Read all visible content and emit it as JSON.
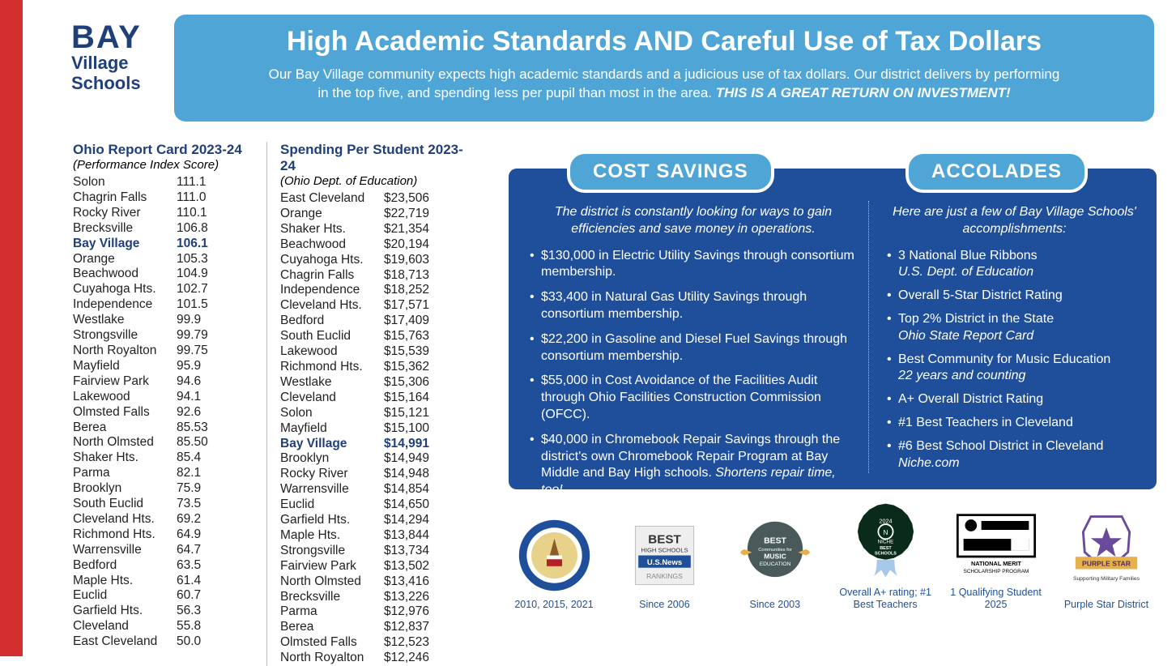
{
  "logo": {
    "line1": "BAY",
    "line2": "Village",
    "line3": "Schools"
  },
  "header": {
    "title": "High Academic Standards AND Careful Use of Tax Dollars",
    "body_a": "Our Bay Village community expects high academic standards and a judicious use of tax dollars. Our district delivers by performing",
    "body_b": "in the top five, and spending less per pupil than most in the area. ",
    "emph": "THIS IS A GREAT RETURN ON INVESTMENT!"
  },
  "report_card": {
    "title": "Ohio Report Card 2023-24",
    "subtitle": "(Performance Index Score)",
    "rows": [
      {
        "n": "Solon",
        "v": "111.1"
      },
      {
        "n": "Chagrin Falls",
        "v": "111.0"
      },
      {
        "n": "Rocky River",
        "v": "110.1"
      },
      {
        "n": "Brecksville",
        "v": "106.8"
      },
      {
        "n": "Bay Village",
        "v": "106.1",
        "hl": true
      },
      {
        "n": "Orange",
        "v": "105.3"
      },
      {
        "n": "Beachwood",
        "v": "104.9"
      },
      {
        "n": "Cuyahoga Hts.",
        "v": "102.7"
      },
      {
        "n": "Independence",
        "v": "101.5"
      },
      {
        "n": "Westlake",
        "v": "99.9"
      },
      {
        "n": "Strongsville",
        "v": "99.79"
      },
      {
        "n": "North Royalton",
        "v": "99.75"
      },
      {
        "n": "Mayfield",
        "v": "95.9"
      },
      {
        "n": "Fairview Park",
        "v": "94.6"
      },
      {
        "n": "Lakewood",
        "v": "94.1"
      },
      {
        "n": "Olmsted Falls",
        "v": "92.6"
      },
      {
        "n": "Berea",
        "v": "85.53"
      },
      {
        "n": "North Olmsted",
        "v": "85.50"
      },
      {
        "n": "Shaker Hts.",
        "v": "85.4"
      },
      {
        "n": "Parma",
        "v": "82.1"
      },
      {
        "n": "Brooklyn",
        "v": "75.9"
      },
      {
        "n": "South Euclid",
        "v": "73.5"
      },
      {
        "n": "Cleveland Hts.",
        "v": "69.2"
      },
      {
        "n": "Richmond Hts.",
        "v": "64.9"
      },
      {
        "n": "Warrensville",
        "v": "64.7"
      },
      {
        "n": "Bedford",
        "v": "63.5"
      },
      {
        "n": "Maple Hts.",
        "v": "61.4"
      },
      {
        "n": "Euclid",
        "v": "60.7"
      },
      {
        "n": "Garfield Hts.",
        "v": "56.3"
      },
      {
        "n": "Cleveland",
        "v": "55.8"
      },
      {
        "n": "East Cleveland",
        "v": "50.0"
      }
    ]
  },
  "spending": {
    "title": "Spending Per Student 2023-24",
    "subtitle": "(Ohio Dept. of Education)",
    "rows": [
      {
        "n": "East Cleveland",
        "v": "$23,506"
      },
      {
        "n": "Orange",
        "v": "$22,719"
      },
      {
        "n": "Shaker Hts.",
        "v": "$21,354"
      },
      {
        "n": "Beachwood",
        "v": "$20,194"
      },
      {
        "n": "Cuyahoga Hts.",
        "v": "$19,603"
      },
      {
        "n": "Chagrin Falls",
        "v": "$18,713"
      },
      {
        "n": "Independence",
        "v": "$18,252"
      },
      {
        "n": "Cleveland Hts.",
        "v": "$17,571"
      },
      {
        "n": "Bedford",
        "v": "$17,409"
      },
      {
        "n": "South Euclid",
        "v": "$15,763"
      },
      {
        "n": "Lakewood",
        "v": "$15,539"
      },
      {
        "n": "Richmond Hts.",
        "v": "$15,362"
      },
      {
        "n": "Westlake",
        "v": "$15,306"
      },
      {
        "n": "Cleveland",
        "v": "$15,164"
      },
      {
        "n": "Solon",
        "v": "$15,121"
      },
      {
        "n": "Mayfield",
        "v": "$15,100"
      },
      {
        "n": "Bay Village",
        "v": "$14,991",
        "hl": true
      },
      {
        "n": "Brooklyn",
        "v": "$14,949"
      },
      {
        "n": "Rocky River",
        "v": "$14,948"
      },
      {
        "n": "Warrensville",
        "v": "$14,854"
      },
      {
        "n": "Euclid",
        "v": "$14,650"
      },
      {
        "n": "Garfield Hts.",
        "v": "$14,294"
      },
      {
        "n": "Maple Hts.",
        "v": "$13,844"
      },
      {
        "n": "Strongsville",
        "v": "$13,734"
      },
      {
        "n": "Fairview Park",
        "v": "$13,502"
      },
      {
        "n": "North Olmsted",
        "v": "$13,416"
      },
      {
        "n": "Brecksville",
        "v": "$13,226"
      },
      {
        "n": "Parma",
        "v": "$12,976"
      },
      {
        "n": "Berea",
        "v": "$12,837"
      },
      {
        "n": "Olmsted Falls",
        "v": "$12,523"
      },
      {
        "n": "North Royalton",
        "v": "$12,246"
      }
    ]
  },
  "cost_savings": {
    "pill": "COST SAVINGS",
    "intro": "The district is constantly looking for ways to gain efficiencies and save money in operations.",
    "items": [
      {
        "t": "$130,000 in Electric Utility Savings through consortium membership."
      },
      {
        "t": "$33,400 in Natural Gas Utility Savings through consortium membership."
      },
      {
        "t": "$22,200 in Gasoline and Diesel Fuel Savings through consortium membership."
      },
      {
        "t": "$55,000 in Cost Avoidance of the Facilities Audit through Ohio Facilities Construction Commission (OFCC)."
      },
      {
        "t": "$40,000 in Chromebook Repair Savings through the district's own Chromebook Repair Program at Bay Middle and Bay High schools.",
        "it": " Shortens repair time, too!"
      }
    ]
  },
  "accolades": {
    "pill": "ACCOLADES",
    "intro": "Here are just a few of Bay Village Schools' accomplishments:",
    "items": [
      {
        "t": "3 National Blue Ribbons",
        "it": "U.S. Dept. of Education"
      },
      {
        "t": "Overall 5-Star District Rating"
      },
      {
        "t": "Top 2% District in the State",
        "it": "Ohio State Report Card"
      },
      {
        "t": "Best Community for Music Education",
        "it": "22 years and counting"
      },
      {
        "t": "A+ Overall District Rating"
      },
      {
        "t": "#1 Best Teachers in Cleveland"
      },
      {
        "t": "#6 Best School District in Cleveland",
        "it": "Niche.com"
      }
    ]
  },
  "badges": [
    {
      "caption": "2010, 2015, 2021"
    },
    {
      "caption": "Since 2006"
    },
    {
      "caption": "Since 2003"
    },
    {
      "caption": "Overall A+ rating; #1 Best Teachers"
    },
    {
      "caption": "1 Qualifying Student 2025"
    },
    {
      "caption": "Purple Star District"
    }
  ],
  "colors": {
    "red": "#d32f2f",
    "navy": "#1f3f7a",
    "banner": "#4fa5d6",
    "panel": "#1f4f9a"
  }
}
